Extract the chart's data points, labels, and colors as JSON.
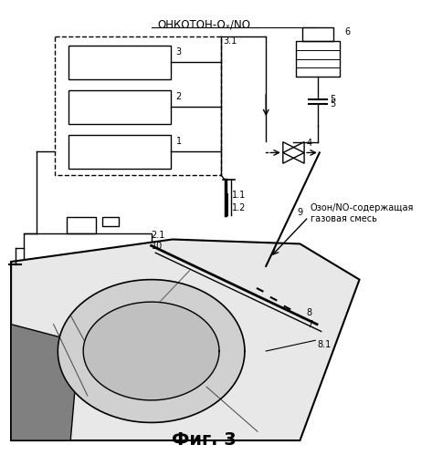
{
  "title": "Фиг. 3",
  "top_label": "ОНКОТОН-Oₓ/NO",
  "background_color": "#ffffff",
  "figsize": [
    4.73,
    4.99
  ],
  "dpi": 100,
  "side_text_line1": "Озон/NO-содержащая",
  "side_text_line2": "газовая смесь"
}
